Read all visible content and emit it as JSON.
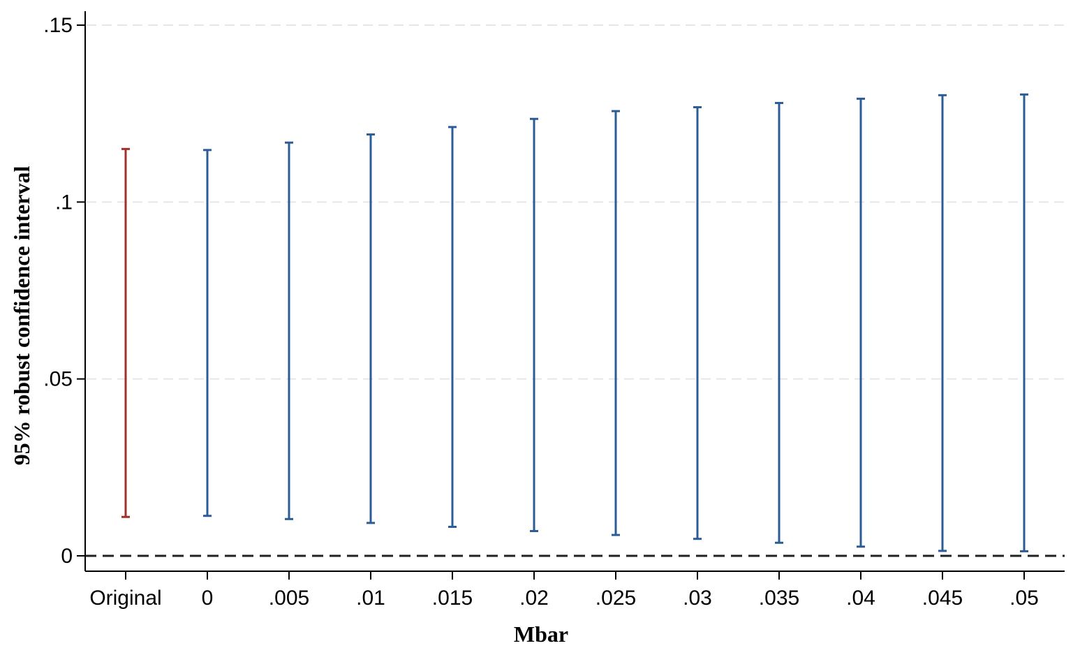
{
  "chart_data": {
    "type": "errorbar",
    "title": "",
    "xlabel": "Mbar",
    "ylabel": "95% robust confidence interval",
    "categories": [
      "Original",
      "0",
      ".005",
      ".01",
      ".015",
      ".02",
      ".025",
      ".03",
      ".035",
      ".04",
      ".045",
      ".05"
    ],
    "lower": [
      0.011,
      0.0113,
      0.0104,
      0.0093,
      0.0082,
      0.007,
      0.0059,
      0.0048,
      0.0037,
      0.0026,
      0.0014,
      0.0013
    ],
    "upper": [
      0.115,
      0.1147,
      0.1168,
      0.1191,
      0.1212,
      0.1235,
      0.1257,
      0.1268,
      0.128,
      0.1292,
      0.1302,
      0.1304
    ],
    "colors": [
      "#a03028",
      "#2c5c96",
      "#2c5c96",
      "#2c5c96",
      "#2c5c96",
      "#2c5c96",
      "#2c5c96",
      "#2c5c96",
      "#2c5c96",
      "#2c5c96",
      "#2c5c96",
      "#2c5c96"
    ],
    "ylim": [
      0,
      0.15
    ],
    "yticks": [
      0,
      0.05,
      0.1,
      0.15
    ],
    "ytick_labels": [
      "0",
      ".05",
      ".1",
      ".15"
    ],
    "grid": true,
    "grid_style": "dashed",
    "reference_line": {
      "y": 0,
      "style": "dashed",
      "color": "#222222"
    }
  }
}
